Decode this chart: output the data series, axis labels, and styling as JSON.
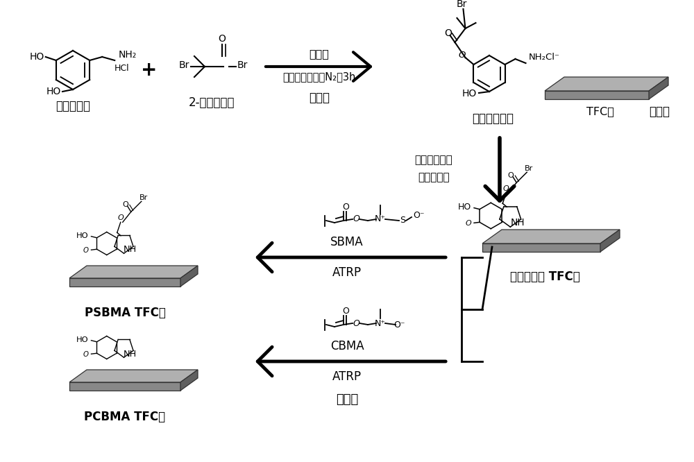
{
  "bg_color": "#ffffff",
  "labels": {
    "step1_reagent1": "盐酸多巴胺",
    "step1_reagent2": "2-溴异丁酰溴",
    "step1_arrow_top": "三乙胺",
    "step1_arrow_bottom": "二甲基甲酰胺，N₂，3h",
    "step1_label": "步骤一",
    "step1_product": "引发剂多巴胺",
    "step2_reagent_line1": "三羟甲基氨基",
    "step2_reagent_line2": "甲烷缓冲液",
    "step2_label": "步骤二",
    "step2_substrate": "TFC膜",
    "step2_product": "聚合多巴胺 TFC膜",
    "step3_label": "步骤三",
    "sbma_label": "SBMA",
    "atrp_label1": "ATRP",
    "cbma_label": "CBMA",
    "atrp_label2": "ATRP",
    "psbma_label": "PSBMA TFC膜",
    "pcbma_label": "PCBMA TFC膜"
  }
}
